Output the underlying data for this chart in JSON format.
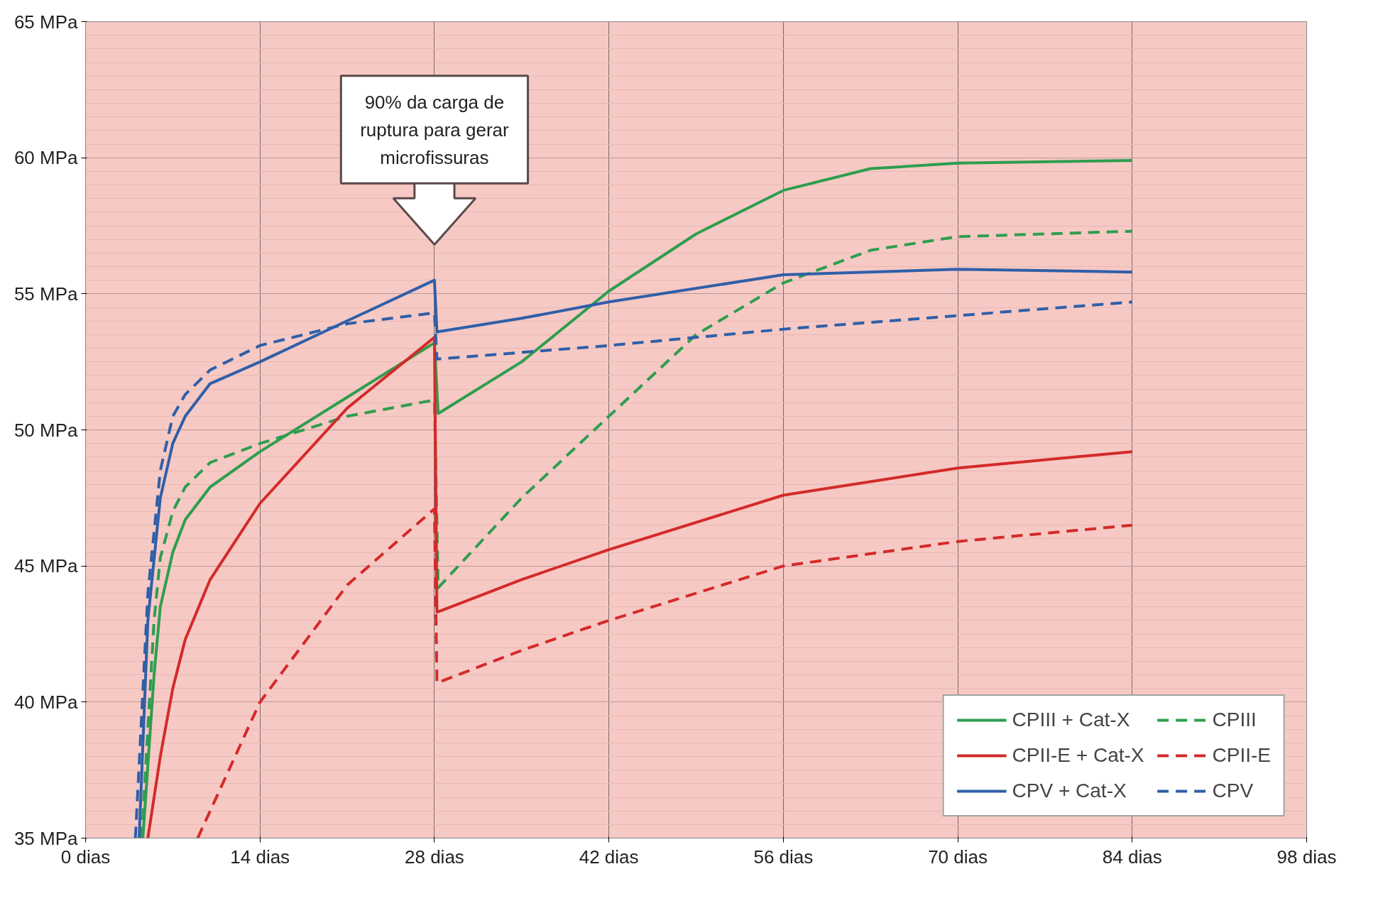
{
  "chart_data": {
    "type": "line",
    "xlim": [
      0,
      98
    ],
    "ylim": [
      35,
      65
    ],
    "xticks": [
      {
        "value": 0,
        "label": "0 dias"
      },
      {
        "value": 14,
        "label": "14 dias"
      },
      {
        "value": 28,
        "label": "28 dias"
      },
      {
        "value": 42,
        "label": "42 dias"
      },
      {
        "value": 56,
        "label": "56 dias"
      },
      {
        "value": 70,
        "label": "70 dias"
      },
      {
        "value": 84,
        "label": "84 dias"
      },
      {
        "value": 98,
        "label": "98 dias"
      }
    ],
    "yticks": [
      {
        "value": 35,
        "label": "35 MPa"
      },
      {
        "value": 40,
        "label": "40 MPa"
      },
      {
        "value": 45,
        "label": "45 MPa"
      },
      {
        "value": 50,
        "label": "50 MPa"
      },
      {
        "value": 55,
        "label": "55 MPa"
      },
      {
        "value": 60,
        "label": "60 MPa"
      },
      {
        "value": 65,
        "label": "65 MPa"
      }
    ],
    "grid": true,
    "legend": "bottom right",
    "marker": "none",
    "annotations": [
      "90% da carga de ruptura para gerar microfissuras"
    ],
    "series": [
      {
        "name": "CPIII + Cat-X",
        "color": "#2e9e4f",
        "line_style": "solid",
        "x": [
          4.6,
          5.5,
          6,
          7,
          8,
          10,
          14,
          21,
          28,
          28.3,
          35,
          42,
          49,
          56,
          63,
          70,
          84
        ],
        "values": [
          35,
          41,
          43.5,
          45.5,
          46.7,
          47.9,
          49.2,
          51.2,
          53.2,
          50.6,
          52.5,
          55.1,
          57.2,
          58.8,
          59.6,
          59.8,
          59.9
        ]
      },
      {
        "name": "CPIII",
        "color": "#2e9e4f",
        "line_style": "dashed",
        "x": [
          4.5,
          5.5,
          6,
          7,
          8,
          10,
          14,
          21,
          28,
          28.3,
          35,
          42,
          49,
          56,
          63,
          70,
          84
        ],
        "values": [
          35,
          43,
          45.3,
          47,
          47.9,
          48.8,
          49.5,
          50.5,
          51.1,
          44.2,
          47.5,
          50.5,
          53.5,
          55.4,
          56.6,
          57.1,
          57.3
        ]
      },
      {
        "name": "CPII-E + Cat-X",
        "color": "#d42a2a",
        "line_style": "solid",
        "x": [
          5,
          6,
          7,
          8,
          10,
          14,
          21,
          28,
          28.2,
          35,
          42,
          56,
          70,
          84
        ],
        "values": [
          35,
          38,
          40.5,
          42.3,
          44.5,
          47.3,
          50.8,
          53.4,
          43.3,
          44.5,
          45.6,
          47.6,
          48.6,
          49.2
        ]
      },
      {
        "name": "CPII-E",
        "color": "#d42a2a",
        "line_style": "dashed",
        "x": [
          9,
          12,
          14,
          21,
          28,
          28.2,
          35,
          42,
          56,
          70,
          84
        ],
        "values": [
          35,
          38,
          40,
          44.3,
          47.1,
          40.7,
          41.9,
          43,
          45,
          45.9,
          46.5
        ]
      },
      {
        "name": "CPV + Cat-X",
        "color": "#2f5fa8",
        "line_style": "solid",
        "x": [
          4.3,
          5,
          6,
          7,
          8,
          10,
          14,
          20.5,
          28,
          28.2,
          35,
          42,
          56,
          70,
          84
        ],
        "values": [
          35,
          43,
          47.5,
          49.5,
          50.5,
          51.7,
          52.5,
          53.9,
          55.5,
          53.6,
          54.1,
          54.7,
          55.7,
          55.9,
          55.8
        ]
      },
      {
        "name": "CPV",
        "color": "#2f5fa8",
        "line_style": "dashed",
        "x": [
          4,
          5,
          6,
          7,
          8,
          10,
          14,
          21,
          28,
          28.2,
          42,
          56,
          70,
          84
        ],
        "values": [
          35,
          44,
          48.5,
          50.5,
          51.3,
          52.2,
          53.1,
          53.9,
          54.3,
          52.6,
          53.1,
          53.7,
          54.2,
          54.7
        ]
      }
    ]
  }
}
